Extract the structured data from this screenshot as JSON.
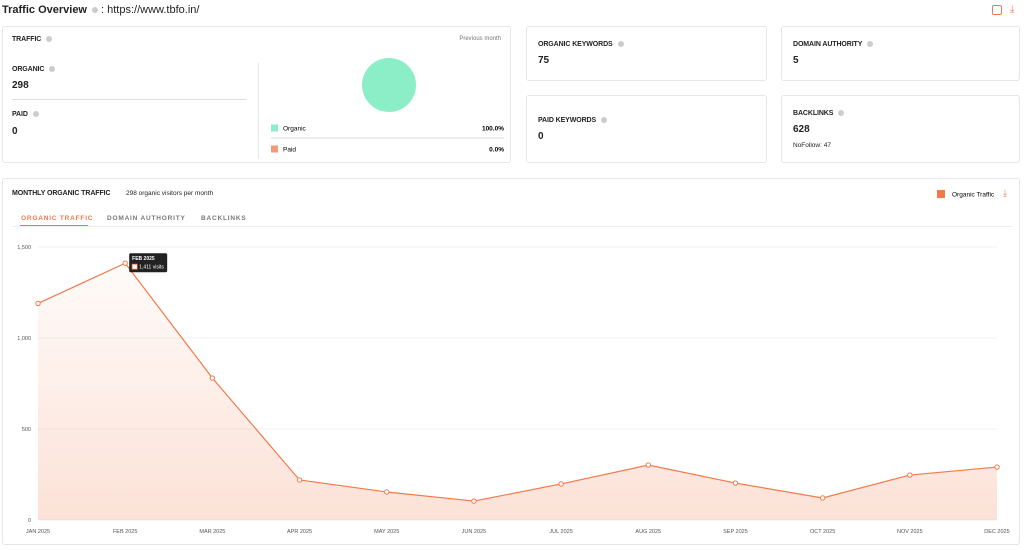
{
  "header": {
    "title": "Traffic Overview",
    "url": ": https://www.tbfo.in/"
  },
  "traffic": {
    "label": "TRAFFIC",
    "period": "Previous month",
    "organic": {
      "label": "ORGANIC",
      "value": 298
    },
    "paid": {
      "label": "PAID",
      "value": 0
    },
    "share": {
      "type": "pie",
      "categories": [
        "Organic",
        "Paid"
      ],
      "values": [
        100,
        0
      ],
      "value_labels": [
        "100.0%",
        "0.0%"
      ],
      "colors": [
        "#8ceec6",
        "#f59a74"
      ]
    }
  },
  "cards": [
    {
      "label": "ORGANIC KEYWORDS",
      "value": 75
    },
    {
      "label": "DOMAIN AUTHORITY",
      "value": 5
    },
    {
      "label": "PAID KEYWORDS",
      "value": 0
    },
    {
      "label": "BACKLINKS",
      "value": 628,
      "note": "NoFollow: 47"
    }
  ],
  "monthly": {
    "title": "MONTHLY ORGANIC TRAFFIC",
    "subtitle": "298 organic visitors per month",
    "tabs": [
      "ORGANIC TRAFFIC",
      "DOMAIN AUTHORITY",
      "BACKLINKS"
    ]
  },
  "chart_data": {
    "type": "line",
    "categories": [
      "JAN 2025",
      "FEB 2025",
      "MAR 2025",
      "APR 2025",
      "MAY 2025",
      "JUN 2025",
      "JUL 2025",
      "AUG 2025",
      "SEP 2025",
      "OCT 2025",
      "NOV 2025",
      "DEC 2025"
    ],
    "series": [
      {
        "name": "Organic Traffic",
        "color": "#f07a4a",
        "values": [
          1190,
          1411,
          780,
          220,
          154,
          104,
          198,
          302,
          203,
          121,
          247,
          291
        ]
      }
    ],
    "ylim": [
      0,
      1500
    ],
    "yticks": [
      0,
      500,
      {
        "value": 1000,
        "label": "1,000"
      },
      {
        "value": 1500,
        "label": "1,500"
      }
    ],
    "grid": true,
    "tooltip": {
      "title": "FEB 2025",
      "label": "1,411 visits"
    }
  }
}
